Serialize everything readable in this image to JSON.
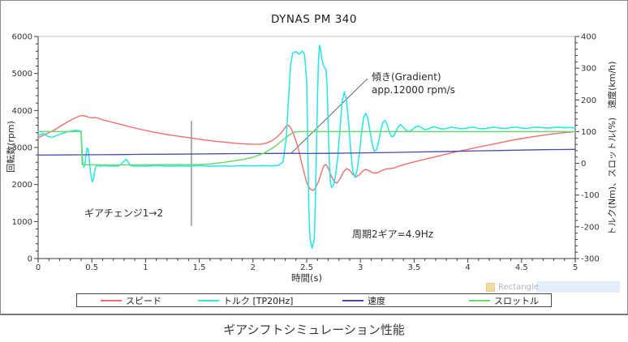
{
  "caption": "ギアシフトシミュレーション性能",
  "watermark": {
    "label": "Rectangle"
  },
  "chart_data": {
    "type": "line",
    "title": "DYNAS PM 340",
    "xlabel": "時間(s)",
    "ylabel_left": "回転数(rpm)",
    "ylabel_right": "トルク(Nm)、スロットル(%)　速度(km/h)",
    "x_range": [
      0,
      5
    ],
    "y_left_range": [
      0,
      6000
    ],
    "y_right_range": [
      -300,
      400
    ],
    "x_ticks": [
      0,
      0.5,
      1,
      1.5,
      2,
      2.5,
      3,
      3.5,
      4,
      4.5,
      5
    ],
    "x_minor_step": 0.1,
    "y_left_ticks": [
      0,
      1000,
      2000,
      3000,
      4000,
      5000,
      6000
    ],
    "y_left_minor_step": 200,
    "y_right_ticks": [
      -300,
      -200,
      -100,
      0,
      100,
      200,
      300,
      400
    ],
    "y_right_minor_step": 20,
    "grid": false,
    "legend_position": "bottom",
    "series": [
      {
        "name": "スピード",
        "color": "#f26d6d",
        "axis": "left",
        "unit": "rpm",
        "points": [
          [
            0,
            3260
          ],
          [
            0.05,
            3330
          ],
          [
            0.1,
            3400
          ],
          [
            0.16,
            3490
          ],
          [
            0.22,
            3600
          ],
          [
            0.28,
            3700
          ],
          [
            0.33,
            3780
          ],
          [
            0.38,
            3845
          ],
          [
            0.41,
            3865
          ],
          [
            0.44,
            3850
          ],
          [
            0.47,
            3820
          ],
          [
            0.5,
            3800
          ],
          [
            0.53,
            3810
          ],
          [
            0.56,
            3790
          ],
          [
            0.6,
            3750
          ],
          [
            0.68,
            3690
          ],
          [
            0.76,
            3630
          ],
          [
            0.84,
            3570
          ],
          [
            0.92,
            3515
          ],
          [
            1.0,
            3460
          ],
          [
            1.1,
            3400
          ],
          [
            1.2,
            3350
          ],
          [
            1.32,
            3300
          ],
          [
            1.44,
            3250
          ],
          [
            1.56,
            3200
          ],
          [
            1.68,
            3160
          ],
          [
            1.8,
            3125
          ],
          [
            1.9,
            3100
          ],
          [
            2.0,
            3085
          ],
          [
            2.07,
            3090
          ],
          [
            2.12,
            3115
          ],
          [
            2.17,
            3170
          ],
          [
            2.22,
            3270
          ],
          [
            2.27,
            3420
          ],
          [
            2.31,
            3580
          ],
          [
            2.33,
            3600
          ],
          [
            2.35,
            3540
          ],
          [
            2.38,
            3350
          ],
          [
            2.42,
            3000
          ],
          [
            2.46,
            2500
          ],
          [
            2.5,
            2050
          ],
          [
            2.53,
            1880
          ],
          [
            2.56,
            1840
          ],
          [
            2.58,
            1900
          ],
          [
            2.61,
            2080
          ],
          [
            2.64,
            2350
          ],
          [
            2.66,
            2510
          ],
          [
            2.68,
            2540
          ],
          [
            2.7,
            2440
          ],
          [
            2.73,
            2220
          ],
          [
            2.76,
            2060
          ],
          [
            2.78,
            2040
          ],
          [
            2.81,
            2150
          ],
          [
            2.84,
            2330
          ],
          [
            2.87,
            2430
          ],
          [
            2.9,
            2390
          ],
          [
            2.93,
            2270
          ],
          [
            2.96,
            2210
          ],
          [
            2.99,
            2260
          ],
          [
            3.02,
            2360
          ],
          [
            3.05,
            2410
          ],
          [
            3.08,
            2370
          ],
          [
            3.12,
            2310
          ],
          [
            3.16,
            2320
          ],
          [
            3.2,
            2380
          ],
          [
            3.24,
            2420
          ],
          [
            3.28,
            2430
          ],
          [
            3.32,
            2450
          ],
          [
            3.36,
            2500
          ],
          [
            3.42,
            2550
          ],
          [
            3.5,
            2610
          ],
          [
            3.6,
            2680
          ],
          [
            3.7,
            2750
          ],
          [
            3.8,
            2820
          ],
          [
            3.9,
            2890
          ],
          [
            4.0,
            2950
          ],
          [
            4.1,
            3010
          ],
          [
            4.2,
            3070
          ],
          [
            4.3,
            3130
          ],
          [
            4.4,
            3190
          ],
          [
            4.5,
            3240
          ],
          [
            4.6,
            3290
          ],
          [
            4.7,
            3330
          ],
          [
            4.8,
            3370
          ],
          [
            4.9,
            3400
          ],
          [
            5.0,
            3430
          ]
        ]
      },
      {
        "name": "トルク [TP20Hz]",
        "color": "#2fe6e6",
        "axis": "right",
        "unit": "Nm",
        "points": [
          [
            0,
            88
          ],
          [
            0.05,
            94
          ],
          [
            0.09,
            85
          ],
          [
            0.13,
            82
          ],
          [
            0.18,
            89
          ],
          [
            0.23,
            95
          ],
          [
            0.28,
            100
          ],
          [
            0.33,
            104
          ],
          [
            0.37,
            104
          ],
          [
            0.4,
            101
          ],
          [
            0.405,
            70
          ],
          [
            0.415,
            5
          ],
          [
            0.425,
            -12
          ],
          [
            0.435,
            -3
          ],
          [
            0.445,
            25
          ],
          [
            0.455,
            48
          ],
          [
            0.465,
            45
          ],
          [
            0.475,
            15
          ],
          [
            0.485,
            -20
          ],
          [
            0.495,
            -45
          ],
          [
            0.505,
            -58
          ],
          [
            0.515,
            -50
          ],
          [
            0.525,
            -28
          ],
          [
            0.535,
            -12
          ],
          [
            0.55,
            -6
          ],
          [
            0.58,
            -9
          ],
          [
            0.62,
            -7
          ],
          [
            0.66,
            -9
          ],
          [
            0.7,
            -8
          ],
          [
            0.74,
            -9
          ],
          [
            0.77,
            -4
          ],
          [
            0.8,
            7
          ],
          [
            0.82,
            13
          ],
          [
            0.84,
            3
          ],
          [
            0.86,
            -7
          ],
          [
            0.9,
            -9
          ],
          [
            0.96,
            -8
          ],
          [
            1.02,
            -9
          ],
          [
            1.1,
            -7
          ],
          [
            1.2,
            -9
          ],
          [
            1.3,
            -8
          ],
          [
            1.4,
            -9
          ],
          [
            1.5,
            -7
          ],
          [
            1.6,
            -9
          ],
          [
            1.7,
            -8
          ],
          [
            1.8,
            -9
          ],
          [
            1.9,
            -7
          ],
          [
            2.0,
            -8
          ],
          [
            2.1,
            -7
          ],
          [
            2.18,
            -8
          ],
          [
            2.24,
            -6
          ],
          [
            2.28,
            5
          ],
          [
            2.31,
            80
          ],
          [
            2.33,
            200
          ],
          [
            2.35,
            310
          ],
          [
            2.37,
            348
          ],
          [
            2.4,
            352
          ],
          [
            2.43,
            344
          ],
          [
            2.46,
            354
          ],
          [
            2.48,
            342
          ],
          [
            2.5,
            260
          ],
          [
            2.51,
            60
          ],
          [
            2.52,
            -140
          ],
          [
            2.53,
            -235
          ],
          [
            2.55,
            -268
          ],
          [
            2.57,
            -240
          ],
          [
            2.58,
            -130
          ],
          [
            2.59,
            30
          ],
          [
            2.6,
            200
          ],
          [
            2.61,
            330
          ],
          [
            2.62,
            372
          ],
          [
            2.63,
            360
          ],
          [
            2.64,
            330
          ],
          [
            2.66,
            305
          ],
          [
            2.68,
            295
          ],
          [
            2.69,
            240
          ],
          [
            2.7,
            120
          ],
          [
            2.71,
            10
          ],
          [
            2.72,
            -55
          ],
          [
            2.73,
            -76
          ],
          [
            2.75,
            -68
          ],
          [
            2.77,
            -35
          ],
          [
            2.79,
            20
          ],
          [
            2.81,
            110
          ],
          [
            2.83,
            195
          ],
          [
            2.85,
            225
          ],
          [
            2.87,
            200
          ],
          [
            2.89,
            130
          ],
          [
            2.91,
            40
          ],
          [
            2.93,
            -25
          ],
          [
            2.95,
            -45
          ],
          [
            2.97,
            -20
          ],
          [
            2.99,
            30
          ],
          [
            3.01,
            95
          ],
          [
            3.03,
            145
          ],
          [
            3.05,
            158
          ],
          [
            3.07,
            140
          ],
          [
            3.09,
            100
          ],
          [
            3.11,
            60
          ],
          [
            3.13,
            38
          ],
          [
            3.15,
            42
          ],
          [
            3.17,
            70
          ],
          [
            3.19,
            105
          ],
          [
            3.21,
            130
          ],
          [
            3.23,
            135
          ],
          [
            3.25,
            120
          ],
          [
            3.27,
            98
          ],
          [
            3.29,
            84
          ],
          [
            3.31,
            86
          ],
          [
            3.33,
            100
          ],
          [
            3.35,
            114
          ],
          [
            3.37,
            122
          ],
          [
            3.39,
            118
          ],
          [
            3.42,
            106
          ],
          [
            3.45,
            100
          ],
          [
            3.48,
            106
          ],
          [
            3.51,
            114
          ],
          [
            3.54,
            118
          ],
          [
            3.57,
            112
          ],
          [
            3.6,
            106
          ],
          [
            3.63,
            108
          ],
          [
            3.66,
            113
          ],
          [
            3.69,
            116
          ],
          [
            3.72,
            112
          ],
          [
            3.76,
            108
          ],
          [
            3.8,
            110
          ],
          [
            3.85,
            114
          ],
          [
            3.9,
            111
          ],
          [
            3.95,
            109
          ],
          [
            4.0,
            112
          ],
          [
            4.05,
            114
          ],
          [
            4.1,
            110
          ],
          [
            4.15,
            109
          ],
          [
            4.2,
            112
          ],
          [
            4.25,
            114
          ],
          [
            4.3,
            111
          ],
          [
            4.35,
            110
          ],
          [
            4.4,
            113
          ],
          [
            4.45,
            114
          ],
          [
            4.5,
            111
          ],
          [
            4.55,
            110
          ],
          [
            4.6,
            113
          ],
          [
            4.65,
            114
          ],
          [
            4.7,
            112
          ],
          [
            4.75,
            111
          ],
          [
            4.8,
            113
          ],
          [
            4.85,
            114
          ],
          [
            4.9,
            112
          ],
          [
            4.95,
            113
          ],
          [
            5.0,
            112
          ]
        ]
      },
      {
        "name": "速度",
        "color": "#4a4aa5",
        "axis": "right",
        "unit": "km/h",
        "points": [
          [
            0,
            26
          ],
          [
            0.2,
            26.5
          ],
          [
            0.4,
            27
          ],
          [
            0.7,
            27.5
          ],
          [
            1.0,
            28.5
          ],
          [
            1.3,
            29
          ],
          [
            1.6,
            30
          ],
          [
            1.9,
            30.8
          ],
          [
            2.2,
            31.4
          ],
          [
            2.35,
            31.6
          ],
          [
            2.5,
            31
          ],
          [
            2.7,
            31.6
          ],
          [
            2.9,
            32.4
          ],
          [
            3.1,
            33.4
          ],
          [
            3.3,
            34.4
          ],
          [
            3.5,
            35.6
          ],
          [
            3.7,
            36.8
          ],
          [
            3.9,
            38
          ],
          [
            4.1,
            39.4
          ],
          [
            4.3,
            40.6
          ],
          [
            4.5,
            41.8
          ],
          [
            4.7,
            43
          ],
          [
            4.85,
            43.6
          ],
          [
            5.0,
            44.2
          ]
        ]
      },
      {
        "name": "スロットル",
        "color": "#6cd96c",
        "axis": "right",
        "unit": "%",
        "points": [
          [
            0,
            100
          ],
          [
            0.39,
            100
          ],
          [
            0.4,
            98
          ],
          [
            0.41,
            -4
          ],
          [
            0.6,
            -5
          ],
          [
            0.9,
            -5
          ],
          [
            1.2,
            -4
          ],
          [
            1.5,
            -4
          ],
          [
            1.6,
            -2
          ],
          [
            1.75,
            4
          ],
          [
            1.9,
            12
          ],
          [
            2.0,
            19
          ],
          [
            2.1,
            32
          ],
          [
            2.2,
            52
          ],
          [
            2.28,
            74
          ],
          [
            2.34,
            90
          ],
          [
            2.38,
            98
          ],
          [
            2.42,
            100
          ],
          [
            3.0,
            100
          ],
          [
            4.0,
            100
          ],
          [
            5.0,
            100
          ]
        ]
      }
    ],
    "annotations": [
      {
        "id": "gradient",
        "lines": [
          "傾き(Gradient)",
          "app.12000 rpm/s"
        ]
      },
      {
        "id": "gearchange",
        "lines": [
          "ギアチェンジ1→2"
        ]
      },
      {
        "id": "period",
        "lines": [
          "周期2ギア=4.9Hz"
        ]
      }
    ],
    "marker_lines": [
      {
        "type": "vertical-marker",
        "axis": "left",
        "points": [
          [
            1.427,
            3720
          ],
          [
            1.427,
            880
          ]
        ]
      },
      {
        "type": "pointer-line",
        "axis": "left",
        "points": [
          [
            3.066,
            4860
          ],
          [
            2.356,
            2845
          ]
        ]
      }
    ]
  }
}
